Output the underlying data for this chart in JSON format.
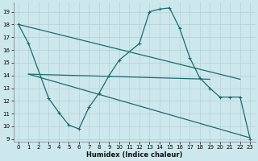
{
  "xlabel": "Humidex (Indice chaleur)",
  "xlim": [
    -0.5,
    23.5
  ],
  "ylim": [
    8.8,
    19.7
  ],
  "yticks": [
    9,
    10,
    11,
    12,
    13,
    14,
    15,
    16,
    17,
    18,
    19
  ],
  "xticks": [
    0,
    1,
    2,
    3,
    4,
    5,
    6,
    7,
    8,
    9,
    10,
    11,
    12,
    13,
    14,
    15,
    16,
    17,
    18,
    19,
    20,
    21,
    22,
    23
  ],
  "background_color": "#cde8ec",
  "grid_color": "#b8d4d8",
  "line_color": "#1a6b6b",
  "curve": {
    "x": [
      0,
      1,
      3,
      4,
      5,
      6,
      7,
      8,
      9,
      10,
      12,
      13,
      14,
      15,
      16,
      17,
      18,
      19,
      20,
      21,
      22,
      23
    ],
    "y": [
      18.0,
      16.5,
      12.2,
      11.1,
      10.1,
      9.8,
      11.5,
      12.6,
      14.0,
      15.2,
      16.5,
      19.0,
      19.2,
      19.3,
      17.7,
      15.4,
      13.8,
      13.0,
      12.3,
      12.3,
      12.3,
      9.0
    ]
  },
  "line1": {
    "x": [
      0,
      22
    ],
    "y": [
      18.0,
      13.7
    ]
  },
  "line2": {
    "x": [
      1,
      19
    ],
    "y": [
      14.1,
      13.7
    ]
  },
  "line3": {
    "x": [
      1,
      23
    ],
    "y": [
      14.1,
      9.1
    ]
  }
}
